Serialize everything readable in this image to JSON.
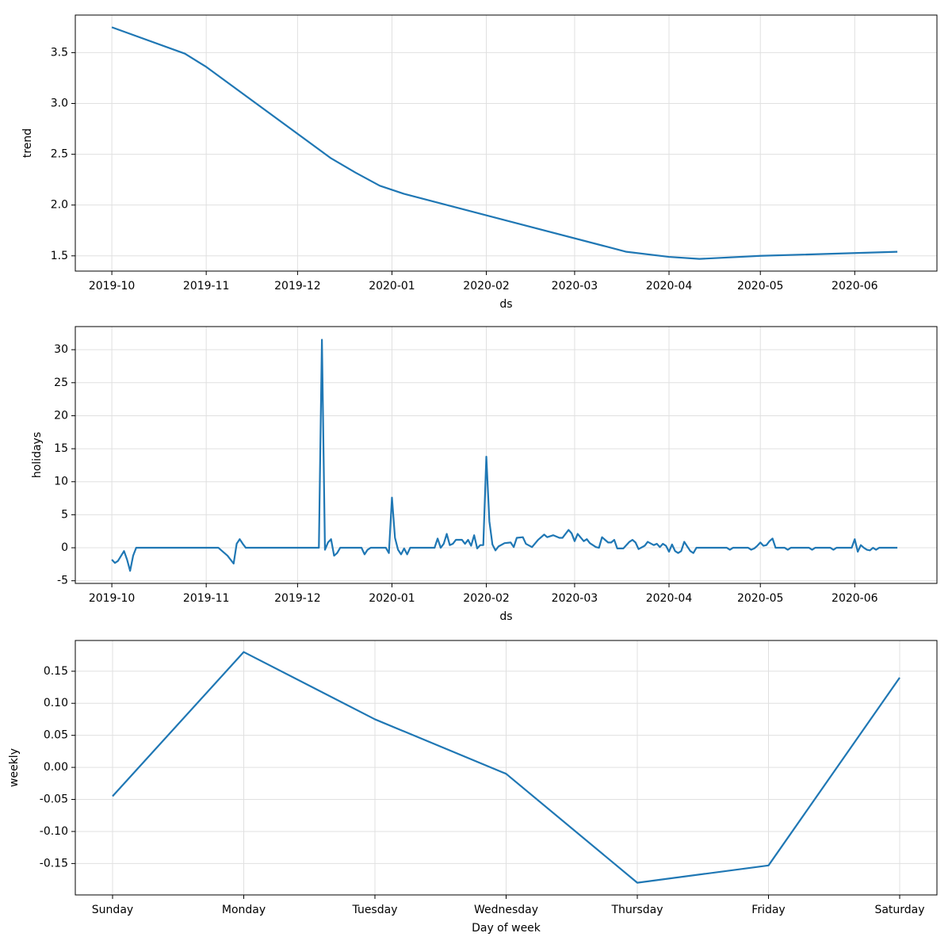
{
  "chart_data": [
    {
      "type": "line",
      "ylabel": "trend",
      "xlabel": "ds",
      "color": "#1f77b4",
      "grid": true,
      "x": [
        "2019-10-01",
        "2019-10-25",
        "2019-11-01",
        "2019-12-12",
        "2019-12-20",
        "2019-12-28",
        "2020-01-05",
        "2020-03-18",
        "2020-04-01",
        "2020-04-11",
        "2020-05-01",
        "2020-06-15"
      ],
      "values": [
        3.75,
        3.49,
        3.36,
        2.46,
        2.32,
        2.19,
        2.11,
        1.54,
        1.49,
        1.47,
        1.5,
        1.54
      ],
      "xlim": [
        "2019-09-19",
        "2020-06-28"
      ],
      "xticks": [
        {
          "value": "2019-10-01",
          "label": "2019-10"
        },
        {
          "value": "2019-11-01",
          "label": "2019-11"
        },
        {
          "value": "2019-12-01",
          "label": "2019-12"
        },
        {
          "value": "2020-01-01",
          "label": "2020-01"
        },
        {
          "value": "2020-02-01",
          "label": "2020-02"
        },
        {
          "value": "2020-03-01",
          "label": "2020-03"
        },
        {
          "value": "2020-04-01",
          "label": "2020-04"
        },
        {
          "value": "2020-05-01",
          "label": "2020-05"
        },
        {
          "value": "2020-06-01",
          "label": "2020-06"
        }
      ],
      "ylim": [
        1.35,
        3.87
      ],
      "yticks": [
        {
          "value": 1.5,
          "label": "1.5"
        },
        {
          "value": 2,
          "label": "2.0"
        },
        {
          "value": 2.5,
          "label": "2.5"
        },
        {
          "value": 3,
          "label": "3.0"
        },
        {
          "value": 3.5,
          "label": "3.5"
        }
      ]
    },
    {
      "type": "line",
      "ylabel": "holidays",
      "xlabel": "ds",
      "color": "#1f77b4",
      "grid": true,
      "x": [
        "2019-10-01",
        "2019-10-02",
        "2019-10-03",
        "2019-10-05",
        "2019-10-06",
        "2019-10-07",
        "2019-10-08",
        "2019-10-09",
        "2019-11-05",
        "2019-11-08",
        "2019-11-10",
        "2019-11-11",
        "2019-11-12",
        "2019-11-13",
        "2019-11-14",
        "2019-12-08",
        "2019-12-09",
        "2019-12-10",
        "2019-12-11",
        "2019-12-12",
        "2019-12-13",
        "2019-12-14",
        "2019-12-15",
        "2019-12-22",
        "2019-12-23",
        "2019-12-24",
        "2019-12-25",
        "2019-12-30",
        "2019-12-31",
        "2020-01-01",
        "2020-01-02",
        "2020-01-03",
        "2020-01-04",
        "2020-01-05",
        "2020-01-06",
        "2020-01-07",
        "2020-01-15",
        "2020-01-16",
        "2020-01-17",
        "2020-01-18",
        "2020-01-19",
        "2020-01-20",
        "2020-01-21",
        "2020-01-22",
        "2020-01-24",
        "2020-01-25",
        "2020-01-26",
        "2020-01-27",
        "2020-01-28",
        "2020-01-29",
        "2020-01-30",
        "2020-01-31",
        "2020-02-01",
        "2020-02-02",
        "2020-02-03",
        "2020-02-04",
        "2020-02-05",
        "2020-02-07",
        "2020-02-09",
        "2020-02-10",
        "2020-02-11",
        "2020-02-13",
        "2020-02-14",
        "2020-02-16",
        "2020-02-18",
        "2020-02-20",
        "2020-02-21",
        "2020-02-23",
        "2020-02-25",
        "2020-02-26",
        "2020-02-28",
        "2020-02-29",
        "2020-03-01",
        "2020-03-02",
        "2020-03-04",
        "2020-03-05",
        "2020-03-06",
        "2020-03-08",
        "2020-03-09",
        "2020-03-10",
        "2020-03-12",
        "2020-03-13",
        "2020-03-14",
        "2020-03-15",
        "2020-03-17",
        "2020-03-19",
        "2020-03-20",
        "2020-03-21",
        "2020-03-22",
        "2020-03-24",
        "2020-03-25",
        "2020-03-27",
        "2020-03-28",
        "2020-03-29",
        "2020-03-30",
        "2020-03-31",
        "2020-04-01",
        "2020-04-02",
        "2020-04-03",
        "2020-04-04",
        "2020-04-05",
        "2020-04-06",
        "2020-04-07",
        "2020-04-08",
        "2020-04-09",
        "2020-04-10",
        "2020-04-20",
        "2020-04-21",
        "2020-04-22",
        "2020-04-27",
        "2020-04-28",
        "2020-04-29",
        "2020-04-30",
        "2020-05-01",
        "2020-05-02",
        "2020-05-03",
        "2020-05-04",
        "2020-05-05",
        "2020-05-06",
        "2020-05-09",
        "2020-05-10",
        "2020-05-11",
        "2020-05-17",
        "2020-05-18",
        "2020-05-19",
        "2020-05-24",
        "2020-05-25",
        "2020-05-26",
        "2020-05-31",
        "2020-06-01",
        "2020-06-02",
        "2020-06-03",
        "2020-06-04",
        "2020-06-05",
        "2020-06-06",
        "2020-06-07",
        "2020-06-08",
        "2020-06-09",
        "2020-06-15"
      ],
      "values": [
        -1.8,
        -2.3,
        -2.0,
        -0.5,
        -1.8,
        -3.5,
        -1.2,
        0,
        0,
        -1.2,
        -2.4,
        0.6,
        1.3,
        0.6,
        0,
        0,
        31.5,
        -0.3,
        0.8,
        1.3,
        -1.2,
        -0.8,
        0,
        0,
        -1.0,
        -0.3,
        0,
        0,
        -0.8,
        7.6,
        1.5,
        -0.3,
        -1.0,
        -0.1,
        -1.0,
        0,
        0,
        1.4,
        0,
        0.6,
        2.1,
        0.4,
        0.6,
        1.2,
        1.2,
        0.6,
        1.2,
        0.3,
        1.9,
        -0.1,
        0.4,
        0.4,
        13.8,
        4.0,
        0.5,
        -0.4,
        0.2,
        0.7,
        0.8,
        0.1,
        1.5,
        1.6,
        0.6,
        0.1,
        1.2,
        2.0,
        1.6,
        1.9,
        1.5,
        1.5,
        2.7,
        2.2,
        1.0,
        2.1,
        1.0,
        1.3,
        0.7,
        0.1,
        0,
        1.6,
        0.8,
        0.8,
        1.2,
        -0.1,
        -0.1,
        0.9,
        1.2,
        0.8,
        -0.2,
        0.3,
        0.9,
        0.4,
        0.6,
        0.1,
        0.6,
        0.3,
        -0.6,
        0.5,
        -0.5,
        -0.8,
        -0.5,
        0.9,
        0.2,
        -0.5,
        -0.8,
        0,
        0,
        -0.3,
        0,
        0,
        -0.3,
        -0.1,
        0.3,
        0.8,
        0.3,
        0.4,
        1.0,
        1.4,
        0,
        0,
        -0.3,
        0,
        0,
        -0.3,
        0,
        0,
        -0.3,
        0,
        0,
        1.3,
        -0.6,
        0.4,
        0,
        -0.3,
        -0.4,
        0,
        -0.3,
        0,
        0
      ],
      "xlim": [
        "2019-09-19",
        "2020-06-28"
      ],
      "xticks": [
        {
          "value": "2019-10-01",
          "label": "2019-10"
        },
        {
          "value": "2019-11-01",
          "label": "2019-11"
        },
        {
          "value": "2019-12-01",
          "label": "2019-12"
        },
        {
          "value": "2020-01-01",
          "label": "2020-01"
        },
        {
          "value": "2020-02-01",
          "label": "2020-02"
        },
        {
          "value": "2020-03-01",
          "label": "2020-03"
        },
        {
          "value": "2020-04-01",
          "label": "2020-04"
        },
        {
          "value": "2020-05-01",
          "label": "2020-05"
        },
        {
          "value": "2020-06-01",
          "label": "2020-06"
        }
      ],
      "ylim": [
        -5.4,
        33.5
      ],
      "yticks": [
        -5,
        0,
        5,
        10,
        15,
        20,
        25,
        30
      ]
    },
    {
      "type": "line",
      "ylabel": "weekly",
      "xlabel": "Day of week",
      "color": "#1f77b4",
      "grid": true,
      "categories": [
        "Sunday",
        "Monday",
        "Tuesday",
        "Wednesday",
        "Thursday",
        "Friday",
        "Saturday"
      ],
      "values": [
        -0.045,
        0.18,
        0.075,
        -0.01,
        -0.18,
        -0.153,
        0.14
      ],
      "ylim": [
        -0.199,
        0.198
      ],
      "yticks": [
        {
          "value": -0.15,
          "label": "-0.15"
        },
        {
          "value": -0.1,
          "label": "-0.10"
        },
        {
          "value": -0.05,
          "label": "-0.05"
        },
        {
          "value": 0,
          "label": "0.00"
        },
        {
          "value": 0.05,
          "label": "0.05"
        },
        {
          "value": 0.1,
          "label": "0.10"
        },
        {
          "value": 0.15,
          "label": "0.15"
        }
      ]
    }
  ]
}
